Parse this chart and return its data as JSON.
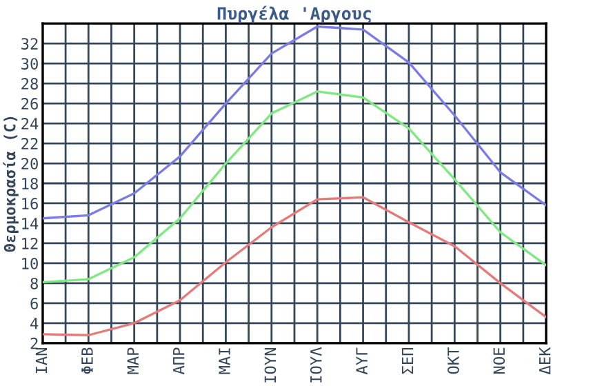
{
  "chart_data": {
    "type": "line",
    "title": "Πυργέλα 'Αργους",
    "ylabel": "Θερμοκρασία (C)",
    "categories": [
      "ΙΑΝ",
      "ΦΕΒ",
      "ΜΑΡ",
      "ΑΠΡ",
      "ΜΑΙ",
      "ΙΟΥΝ",
      "ΙΟΥΛ",
      "ΑΥΓ",
      "ΣΕΠ",
      "ΟΚΤ",
      "ΝΟΕ",
      "ΔΕΚ"
    ],
    "series": [
      {
        "color": "#7b7be6",
        "values": [
          14.5,
          14.8,
          17,
          20.7,
          26,
          31,
          33.7,
          33.4,
          30.1,
          24.8,
          19.1,
          15.8
        ]
      },
      {
        "color": "#80e880",
        "values": [
          8.1,
          8.4,
          10.6,
          14.5,
          20,
          25,
          27.2,
          26.6,
          23.5,
          18.4,
          13.1,
          9.8
        ]
      },
      {
        "color": "#e67a7a",
        "values": [
          2.9,
          2.8,
          4.0,
          6.3,
          10.1,
          13.6,
          16.4,
          16.6,
          14.1,
          11.7,
          8,
          4.6
        ]
      }
    ],
    "ylim": [
      2,
      34
    ],
    "yticks": [
      2,
      4,
      6,
      8,
      10,
      12,
      14,
      16,
      18,
      20,
      22,
      24,
      26,
      28,
      30,
      32
    ],
    "grid": true,
    "legend": false,
    "marker": "none",
    "line_style": "solid"
  }
}
